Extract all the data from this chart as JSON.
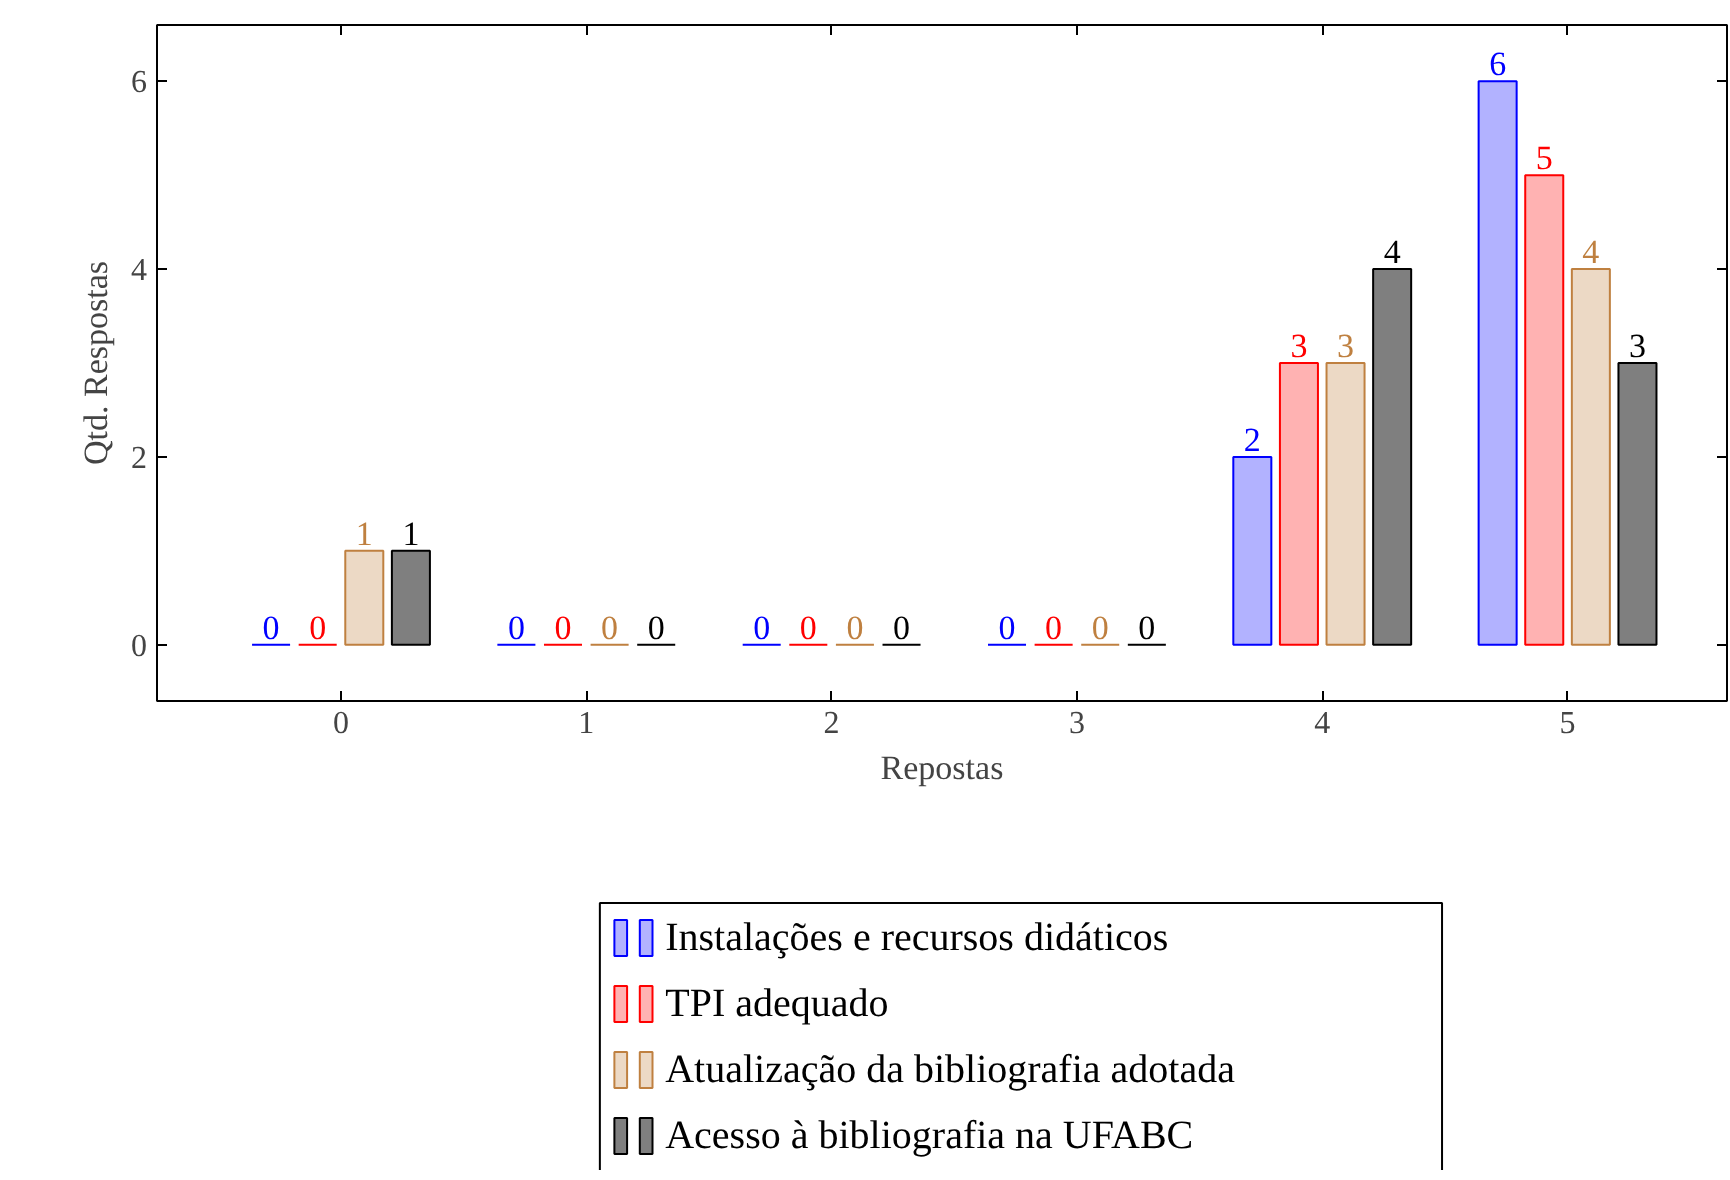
{
  "chart_data": {
    "type": "bar",
    "xlabel": "Repostas",
    "ylabel": "Qtd. Respostas",
    "x": [
      0,
      1,
      2,
      3,
      4,
      5
    ],
    "xlim": [
      -0.75,
      5.65
    ],
    "xticks": [
      0,
      1,
      2,
      3,
      4,
      5
    ],
    "ylim": [
      -0.6,
      6.6
    ],
    "yticks": [
      0,
      2,
      4,
      6
    ],
    "grid": false,
    "legend": "bottom",
    "data_labels": true,
    "series": [
      {
        "name": "Instalações e recursos didáticos",
        "color": "#0000ff",
        "values": [
          0,
          0,
          0,
          0,
          2,
          6
        ]
      },
      {
        "name": "TPI adequado",
        "color": "#ff0000",
        "values": [
          0,
          0,
          0,
          0,
          3,
          5
        ]
      },
      {
        "name": "Atualização da bibliografia adotada",
        "color": "#bf8040",
        "values": [
          1,
          0,
          0,
          0,
          3,
          4
        ]
      },
      {
        "name": "Acesso à bibliografia na UFABC",
        "color": "#000000",
        "values": [
          1,
          0,
          0,
          0,
          4,
          3
        ]
      }
    ]
  }
}
